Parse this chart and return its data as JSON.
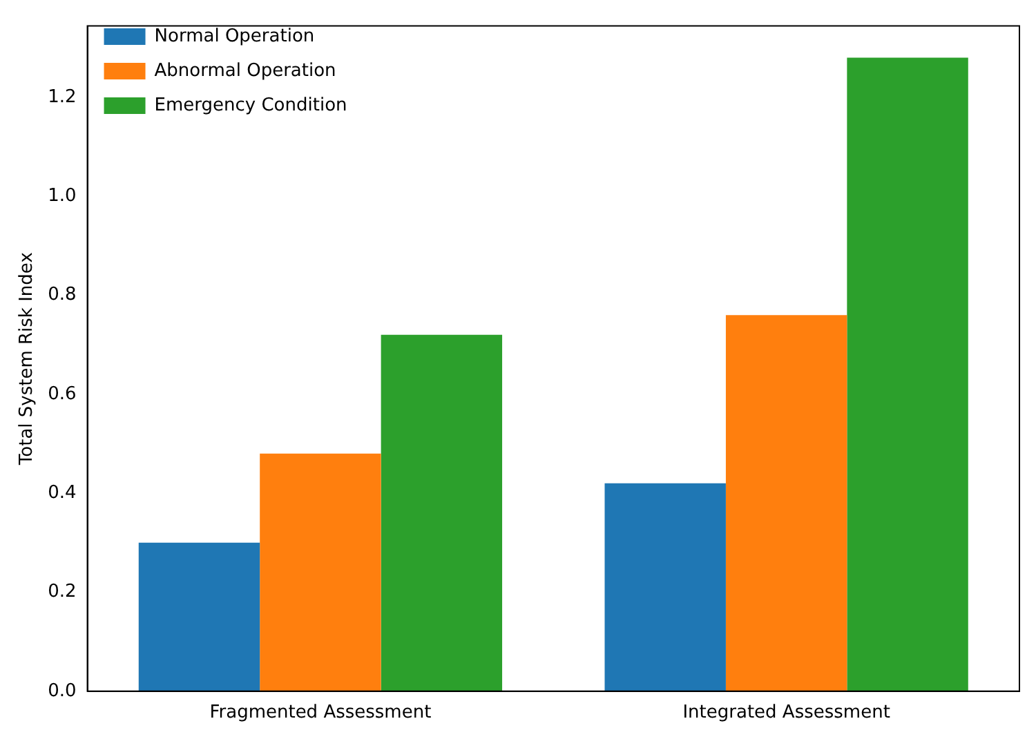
{
  "chart_data": {
    "type": "bar",
    "ylabel": "Total System Risk Index",
    "categories": [
      "Fragmented Assessment",
      "Integrated Assessment"
    ],
    "series": [
      {
        "name": "Normal Operation",
        "color": "#1f77b4",
        "values": [
          0.3,
          0.42
        ]
      },
      {
        "name": "Abnormal Operation",
        "color": "#ff7f0e",
        "values": [
          0.48,
          0.76
        ]
      },
      {
        "name": "Emergency Condition",
        "color": "#2ca02c",
        "values": [
          0.72,
          1.28
        ]
      }
    ],
    "ylim": [
      0,
      1.344
    ],
    "yticks": [
      {
        "value": 0,
        "label": "0.0"
      },
      0.2,
      0.4,
      0.6,
      0.8,
      {
        "value": 1,
        "label": "1.0"
      },
      1.2
    ],
    "legend": "top left",
    "grid": false
  }
}
